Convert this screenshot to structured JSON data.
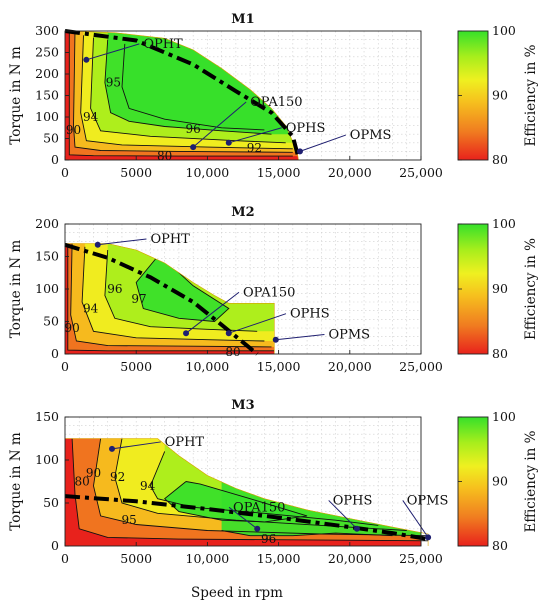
{
  "colors": {
    "background": "#ffffff",
    "colormap": [
      "#e8221c",
      "#f07c20",
      "#f6c01e",
      "#eff020",
      "#a8ee1c",
      "#36e02a"
    ],
    "operating_point": "#1f1f70",
    "contour": "#111111",
    "limit_line": "#000000"
  },
  "figure": {
    "xlabel": "Speed in rpm"
  },
  "chart_data": [
    {
      "type": "heatmap",
      "title": "M1",
      "xlabel": "",
      "ylabel": "Torque in N m",
      "colorbar_label": "Efficiency in %",
      "xlim": [
        0,
        25000
      ],
      "ylim": [
        0,
        300
      ],
      "xticks": [
        0,
        5000,
        10000,
        15000,
        20000,
        25000
      ],
      "xtick_labels": [
        "0",
        "5000",
        "10,000",
        "15,000",
        "20,000",
        "25,000"
      ],
      "yticks": [
        0,
        50,
        100,
        150,
        200,
        250,
        300
      ],
      "ytick_labels": [
        "0",
        "50",
        "100",
        "150",
        "200",
        "250",
        "300"
      ],
      "colorbar_range": [
        80,
        100
      ],
      "colorbar_ticks": [
        "80",
        "90",
        "100"
      ],
      "grid": true,
      "max_torque_envelope": [
        [
          0,
          300
        ],
        [
          3500,
          296
        ],
        [
          7000,
          283
        ],
        [
          9000,
          256
        ],
        [
          11000,
          213
        ],
        [
          13000,
          164
        ],
        [
          14500,
          120
        ],
        [
          15500,
          80
        ],
        [
          16300,
          20
        ],
        [
          16400,
          0
        ]
      ],
      "contour_lines": [
        {
          "level": 80,
          "label": "80",
          "label_at": [
            7000,
            9
          ],
          "points": [
            [
              300,
              300
            ],
            [
              300,
              12
            ],
            [
              2000,
              10
            ],
            [
              8000,
              9
            ],
            [
              16000,
              9
            ]
          ]
        },
        {
          "level": 90,
          "label": "90",
          "label_at": [
            600,
            70
          ],
          "points": [
            [
              700,
              300
            ],
            [
              600,
              80
            ],
            [
              700,
              30
            ],
            [
              2500,
              22
            ],
            [
              8000,
              20
            ],
            [
              16000,
              18
            ]
          ]
        },
        {
          "level": 92,
          "label": "92",
          "label_at": [
            13300,
            28
          ],
          "points": [
            [
              1300,
              290
            ],
            [
              1100,
              110
            ],
            [
              1500,
              45
            ],
            [
              4000,
              35
            ],
            [
              10000,
              30
            ],
            [
              16000,
              26
            ]
          ]
        },
        {
          "level": 94,
          "label": "94",
          "label_at": [
            1800,
            100
          ],
          "points": [
            [
              2000,
              285
            ],
            [
              1800,
              120
            ],
            [
              2500,
              68
            ],
            [
              6000,
              55
            ],
            [
              12000,
              45
            ],
            [
              15500,
              40
            ]
          ]
        },
        {
          "level": 95,
          "label": "95",
          "label_at": [
            3400,
            180
          ],
          "points": [
            [
              3000,
              280
            ],
            [
              2800,
              180
            ],
            [
              3200,
              110
            ],
            [
              4500,
              90
            ],
            [
              7000,
              78
            ],
            [
              11000,
              68
            ],
            [
              14500,
              60
            ]
          ]
        },
        {
          "level": 96,
          "label": "96",
          "label_at": [
            9000,
            72
          ],
          "points": [
            [
              4200,
              270
            ],
            [
              4000,
              170
            ],
            [
              4500,
              120
            ],
            [
              7000,
              95
            ],
            [
              11000,
              75
            ],
            [
              14000,
              70
            ]
          ]
        }
      ],
      "limit_line": [
        [
          0,
          300
        ],
        [
          5000,
          278
        ],
        [
          9000,
          222
        ],
        [
          12000,
          160
        ],
        [
          14500,
          110
        ],
        [
          16000,
          55
        ],
        [
          16400,
          5
        ]
      ],
      "operating_points": [
        {
          "name": "OPHT",
          "x": 1500,
          "y": 233,
          "label_at": [
            5500,
            270
          ]
        },
        {
          "name": "OPA150",
          "x": 9000,
          "y": 30,
          "label_at": [
            13000,
            135
          ]
        },
        {
          "name": "OPHS",
          "x": 11500,
          "y": 40,
          "label_at": [
            15500,
            75
          ]
        },
        {
          "name": "OPMS",
          "x": 16500,
          "y": 20,
          "label_at": [
            20000,
            58
          ]
        }
      ]
    },
    {
      "type": "heatmap",
      "title": "M2",
      "xlabel": "",
      "ylabel": "Torque in N m",
      "colorbar_label": "Efficiency in %",
      "xlim": [
        0,
        25000
      ],
      "ylim": [
        0,
        200
      ],
      "xticks": [
        0,
        5000,
        10000,
        15000,
        20000,
        25000
      ],
      "xtick_labels": [
        "0",
        "5000",
        "10,000",
        "15,000",
        "20,000",
        "25,000"
      ],
      "yticks": [
        0,
        50,
        100,
        150,
        200
      ],
      "ytick_labels": [
        "0",
        "50",
        "100",
        "150",
        "200"
      ],
      "colorbar_range": [
        80,
        100
      ],
      "colorbar_ticks": [
        "80",
        "90",
        "100"
      ],
      "grid": true,
      "max_torque_envelope": [
        [
          0,
          170
        ],
        [
          3000,
          170
        ],
        [
          5000,
          160
        ],
        [
          7000,
          140
        ],
        [
          9000,
          110
        ],
        [
          10500,
          90
        ],
        [
          11500,
          78
        ],
        [
          14700,
          78
        ],
        [
          14700,
          0
        ]
      ],
      "contour_lines": [
        {
          "level": 80,
          "label": "80",
          "label_at": [
            11800,
            3
          ],
          "points": [
            [
              200,
              170
            ],
            [
              200,
              6
            ],
            [
              3000,
              5
            ],
            [
              10000,
              5
            ],
            [
              14700,
              5
            ]
          ]
        },
        {
          "level": 90,
          "label": "90",
          "label_at": [
            500,
            40
          ],
          "points": [
            [
              500,
              170
            ],
            [
              400,
              60
            ],
            [
              800,
              20
            ],
            [
              3000,
              13
            ],
            [
              9000,
              12
            ],
            [
              14500,
              11
            ]
          ]
        },
        {
          "level": 94,
          "label": "94",
          "label_at": [
            1800,
            70
          ],
          "points": [
            [
              1400,
              165
            ],
            [
              1200,
              80
            ],
            [
              2000,
              35
            ],
            [
              5000,
              25
            ],
            [
              10000,
              22
            ],
            [
              14000,
              20
            ]
          ]
        },
        {
          "level": 96,
          "label": "96",
          "label_at": [
            3500,
            100
          ],
          "points": [
            [
              3000,
              160
            ],
            [
              2800,
              90
            ],
            [
              3500,
              55
            ],
            [
              6000,
              42
            ],
            [
              10000,
              38
            ],
            [
              13500,
              35
            ]
          ]
        },
        {
          "level": 97,
          "label": "97",
          "label_at": [
            5200,
            85
          ],
          "points": [
            [
              6500,
              150
            ],
            [
              5000,
              110
            ],
            [
              5500,
              70
            ],
            [
              8000,
              55
            ],
            [
              10500,
              50
            ],
            [
              11500,
              70
            ],
            [
              9000,
              105
            ],
            [
              7000,
              145
            ],
            [
              6500,
              150
            ]
          ]
        }
      ],
      "limit_line": [
        [
          0,
          168
        ],
        [
          3000,
          148
        ],
        [
          6000,
          118
        ],
        [
          9000,
          80
        ],
        [
          11000,
          45
        ],
        [
          12500,
          18
        ],
        [
          13500,
          0
        ]
      ],
      "operating_points": [
        {
          "name": "OPHT",
          "x": 2300,
          "y": 168,
          "label_at": [
            6000,
            177
          ]
        },
        {
          "name": "OPA150",
          "x": 8500,
          "y": 32,
          "label_at": [
            12500,
            95
          ]
        },
        {
          "name": "OPHS",
          "x": 11500,
          "y": 32,
          "label_at": [
            15800,
            62
          ]
        },
        {
          "name": "OPMS",
          "x": 14800,
          "y": 22,
          "label_at": [
            18500,
            30
          ]
        }
      ]
    },
    {
      "type": "heatmap",
      "title": "M3",
      "xlabel": "Speed in rpm",
      "ylabel": "Torque in N m",
      "colorbar_label": "Efficiency in %",
      "xlim": [
        0,
        25000
      ],
      "ylim": [
        0,
        150
      ],
      "xticks": [
        0,
        5000,
        10000,
        15000,
        20000,
        25000
      ],
      "xtick_labels": [
        "0",
        "5000",
        "10,000",
        "15,000",
        "20,000",
        "25,000"
      ],
      "yticks": [
        0,
        50,
        100,
        150
      ],
      "ytick_labels": [
        "0",
        "50",
        "100",
        "150"
      ],
      "colorbar_range": [
        80,
        100
      ],
      "colorbar_ticks": [
        "80",
        "90",
        "100"
      ],
      "grid": true,
      "max_torque_envelope": [
        [
          0,
          125
        ],
        [
          6500,
          125
        ],
        [
          8000,
          105
        ],
        [
          10000,
          82
        ],
        [
          12000,
          67
        ],
        [
          14000,
          55
        ],
        [
          17000,
          42
        ],
        [
          20000,
          32
        ],
        [
          23000,
          22
        ],
        [
          25500,
          14
        ],
        [
          25500,
          0
        ]
      ],
      "contour_lines": [
        {
          "level": 80,
          "label": "80",
          "label_at": [
            1200,
            75
          ],
          "points": [
            [
              500,
              125
            ],
            [
              700,
              60
            ],
            [
              1000,
              20
            ],
            [
              3000,
              10
            ],
            [
              8000,
              8
            ],
            [
              25500,
              6
            ]
          ]
        },
        {
          "level": 90,
          "label": "90",
          "label_at": [
            2000,
            85
          ],
          "points": [
            [
              2500,
              125
            ],
            [
              2000,
              70
            ],
            [
              2500,
              35
            ],
            [
              5000,
              25
            ],
            [
              10000,
              18
            ],
            [
              18000,
              14
            ],
            [
              25500,
              12
            ]
          ]
        },
        {
          "level": 92,
          "label": "92",
          "label_at": [
            3700,
            80
          ],
          "points": [
            [
              4000,
              125
            ],
            [
              3500,
              80
            ],
            [
              4000,
              50
            ],
            [
              6500,
              38
            ],
            [
              12000,
              30
            ],
            [
              18000,
              24
            ],
            [
              24000,
              18
            ]
          ]
        },
        {
          "level": 94,
          "label": "94",
          "label_at": [
            5800,
            70
          ],
          "points": [
            [
              7000,
              110
            ],
            [
              6000,
              70
            ],
            [
              6500,
              55
            ],
            [
              9000,
              45
            ],
            [
              14000,
              38
            ],
            [
              19000,
              30
            ],
            [
              22000,
              24
            ]
          ]
        },
        {
          "level": 95,
          "label": "95",
          "label_at": [
            4500,
            30
          ],
          "points": [
            [
              8500,
              75
            ],
            [
              7000,
              55
            ],
            [
              8000,
              40
            ],
            [
              11000,
              30
            ],
            [
              14000,
              28
            ],
            [
              17000,
              35
            ],
            [
              13000,
              55
            ],
            [
              9500,
              72
            ],
            [
              8500,
              75
            ]
          ]
        },
        {
          "level": 96,
          "label": "96",
          "label_at": [
            14300,
            8
          ],
          "points": [
            [
              11000,
              18
            ],
            [
              13000,
              12
            ],
            [
              16000,
              12
            ],
            [
              19000,
              15
            ],
            [
              23000,
              12
            ]
          ]
        }
      ],
      "limit_line": [
        [
          0,
          58
        ],
        [
          5000,
          52
        ],
        [
          10000,
          43
        ],
        [
          15000,
          33
        ],
        [
          20000,
          22
        ],
        [
          23000,
          15
        ],
        [
          25500,
          8
        ]
      ],
      "operating_points": [
        {
          "name": "OPHT",
          "x": 3300,
          "y": 113,
          "label_at": [
            7000,
            121
          ]
        },
        {
          "name": "OPA150",
          "x": 13500,
          "y": 20,
          "label_at": [
            11800,
            45
          ]
        },
        {
          "name": "OPHS",
          "x": 20500,
          "y": 20,
          "label_at": [
            18800,
            53
          ]
        },
        {
          "name": "OPMS",
          "x": 25500,
          "y": 10,
          "label_at": [
            24000,
            53
          ]
        }
      ]
    }
  ]
}
